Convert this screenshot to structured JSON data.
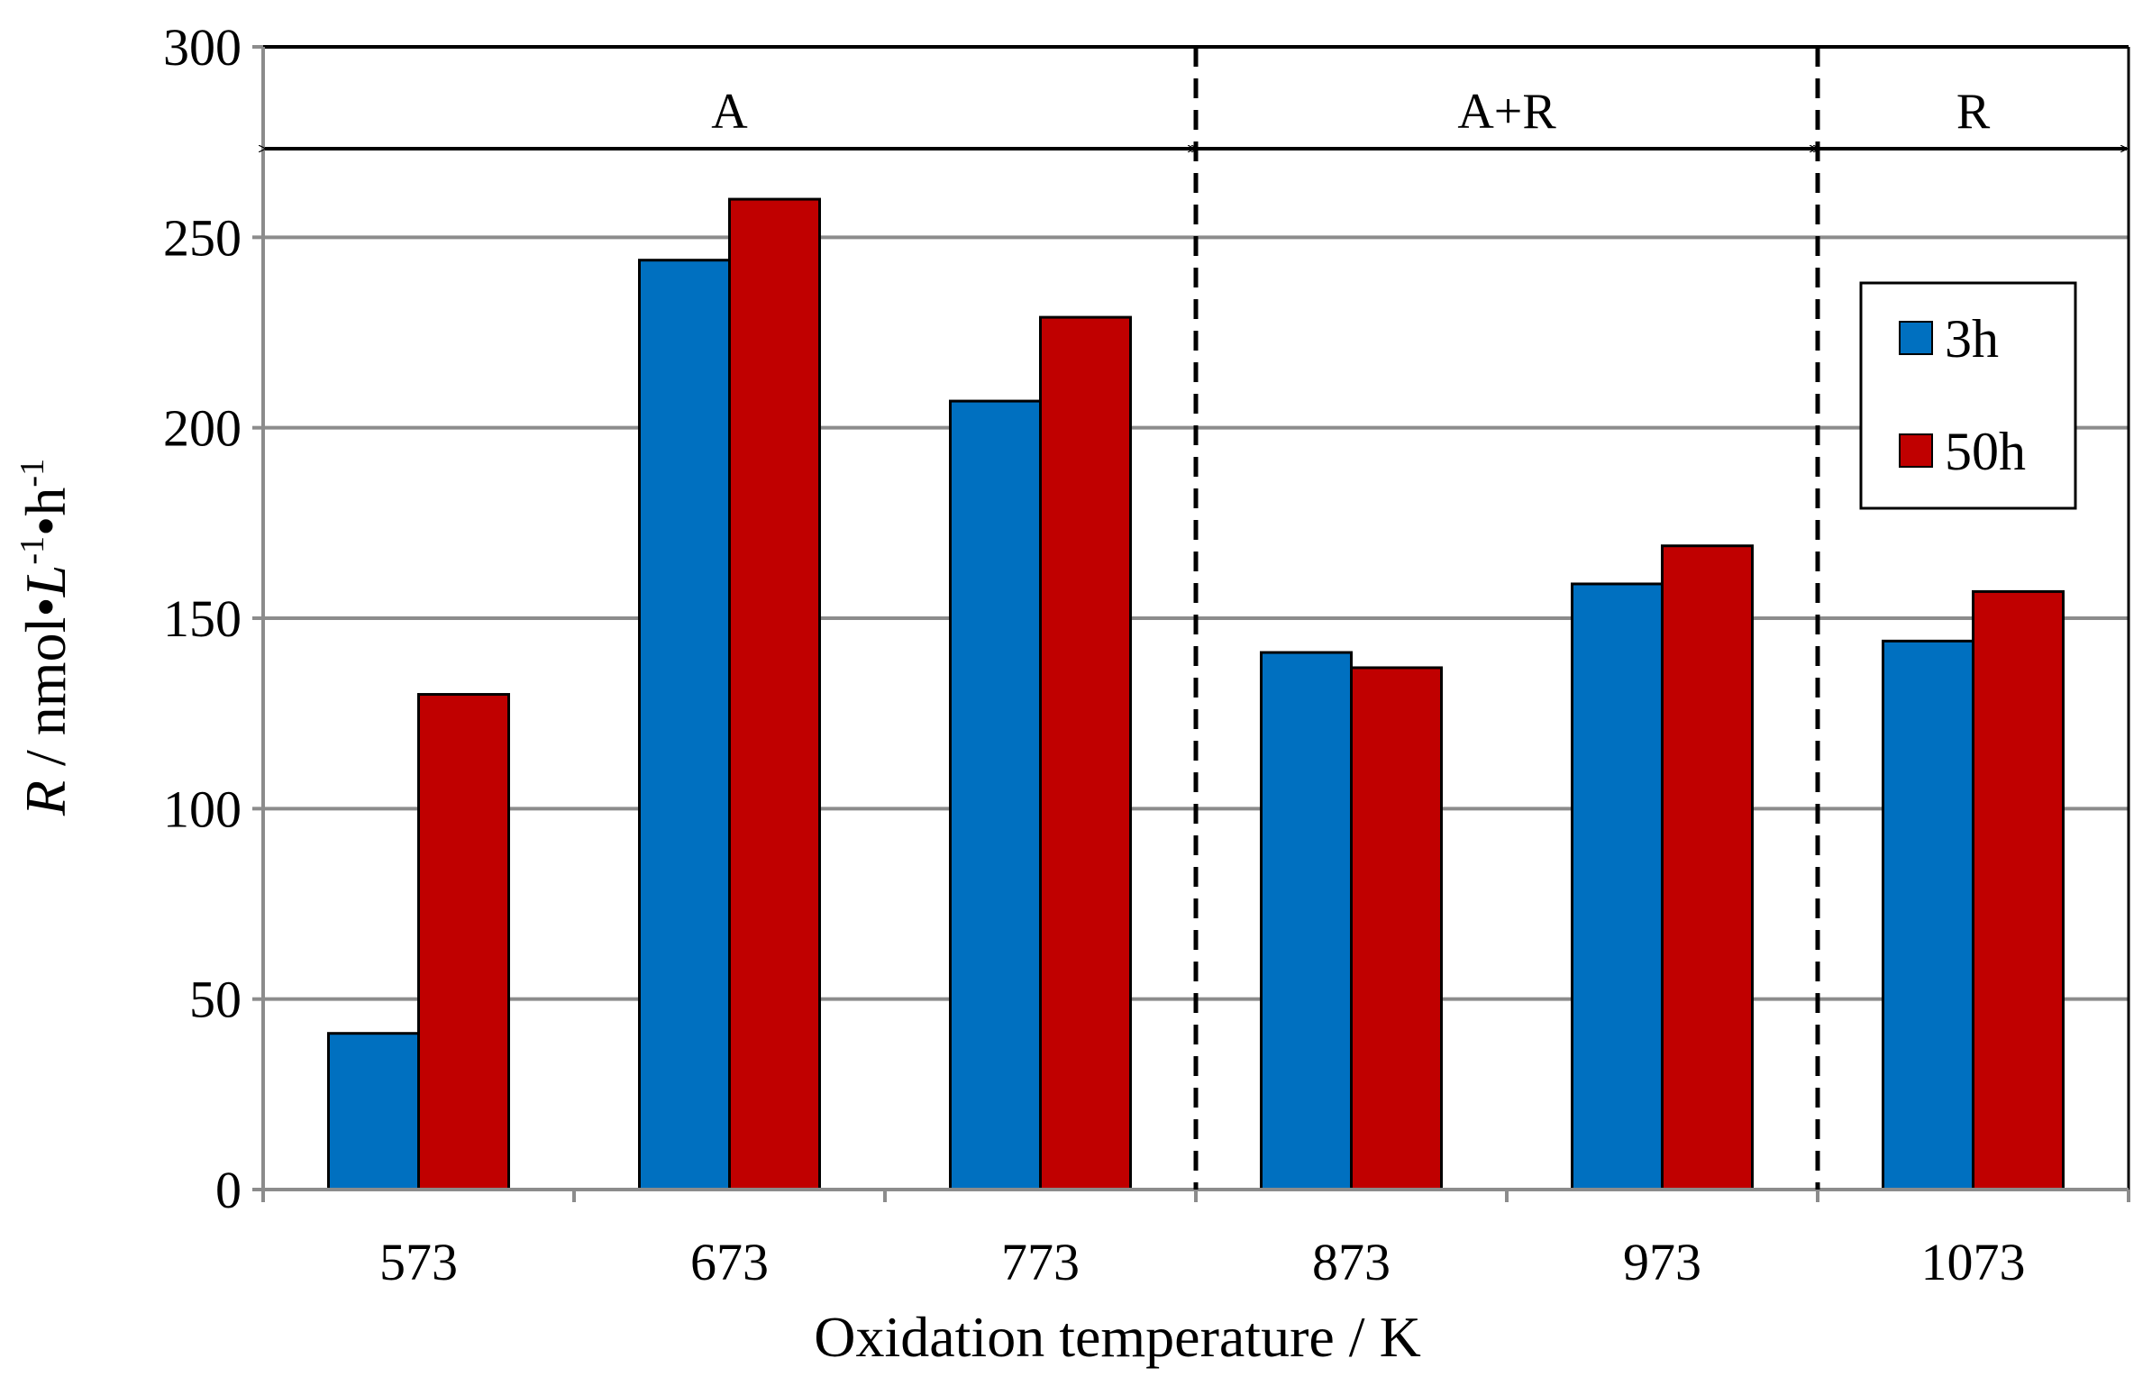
{
  "chart_data": {
    "type": "bar",
    "title": "",
    "xlabel": "Oxidation temperature / K",
    "ylabel": {
      "symbol": "R",
      "unit_prefix": " / nmol",
      "dot": "•",
      "unit_L": "L",
      "sup": "-1",
      "unit_h": "h"
    },
    "categories": [
      "573",
      "673",
      "773",
      "873",
      "973",
      "1073"
    ],
    "series": [
      {
        "name": "3h",
        "color": "#0070C0",
        "values": [
          41,
          244,
          207,
          141,
          159,
          144
        ]
      },
      {
        "name": "50h",
        "color": "#C00000",
        "values": [
          130,
          260,
          229,
          137,
          169,
          157
        ]
      }
    ],
    "ylim": [
      0,
      300
    ],
    "yticks": [
      0,
      50,
      100,
      150,
      200,
      250,
      300
    ],
    "grid": true,
    "legend_position": "top-right",
    "regions": [
      {
        "label": "A",
        "from_category": 0,
        "to_category": 2
      },
      {
        "label": "A+R",
        "from_category": 3,
        "to_category": 4
      },
      {
        "label": "R",
        "from_category": 5,
        "to_category": 5
      }
    ],
    "boundaries_after_category": [
      2,
      4
    ]
  }
}
